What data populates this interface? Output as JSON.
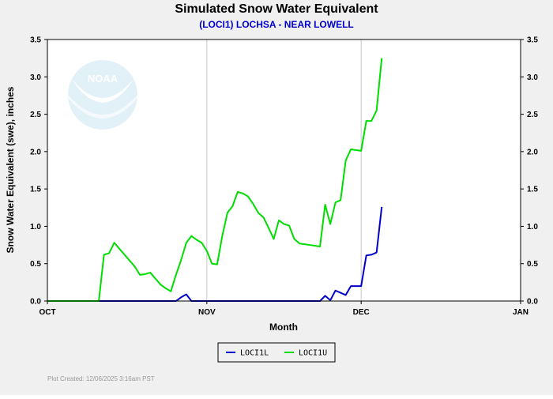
{
  "chart_data": {
    "type": "line",
    "title": "Simulated Snow Water Equivalent",
    "subtitle": "(LOCI1) LOCHSA - NEAR LOWELL",
    "ylabel": "Snow Water Equivalent (swe),  inches",
    "xlabel": "Month",
    "x_axis": {
      "type": "date",
      "range": [
        "2025-10-01",
        "2026-01-01"
      ],
      "ticks": [
        {
          "date": "2025-10-01",
          "label": "OCT"
        },
        {
          "date": "2025-11-01",
          "label": "NOV"
        },
        {
          "date": "2025-12-01",
          "label": "DEC"
        },
        {
          "date": "2026-01-01",
          "label": "JAN"
        }
      ]
    },
    "ylim": [
      0,
      3.5
    ],
    "yticks": [
      "0.0",
      "0.5",
      "1.0",
      "1.5",
      "2.0",
      "2.5",
      "3.0",
      "3.5"
    ],
    "grid": {
      "vertical": true,
      "horizontal": false
    },
    "legend": "bottom",
    "watermark": "NOAA",
    "series": [
      {
        "name": "LOCI1L",
        "color": "#0000cc",
        "points": [
          [
            "2025-10-01",
            0.0
          ],
          [
            "2025-10-26",
            0.0
          ],
          [
            "2025-10-27",
            0.05
          ],
          [
            "2025-10-28",
            0.09
          ],
          [
            "2025-10-29",
            0.0
          ],
          [
            "2025-11-23",
            0.0
          ],
          [
            "2025-11-24",
            0.07
          ],
          [
            "2025-11-25",
            0.01
          ],
          [
            "2025-11-26",
            0.14
          ],
          [
            "2025-11-27",
            0.11
          ],
          [
            "2025-11-28",
            0.08
          ],
          [
            "2025-11-29",
            0.2
          ],
          [
            "2025-11-30",
            0.2
          ],
          [
            "2025-12-01",
            0.2
          ],
          [
            "2025-12-02",
            0.61
          ],
          [
            "2025-12-03",
            0.62
          ],
          [
            "2025-12-04",
            0.65
          ],
          [
            "2025-12-05",
            1.26
          ]
        ]
      },
      {
        "name": "LOCI1U",
        "color": "#00dd00",
        "points": [
          [
            "2025-10-01",
            0.0
          ],
          [
            "2025-10-11",
            0.0
          ],
          [
            "2025-10-12",
            0.62
          ],
          [
            "2025-10-13",
            0.64
          ],
          [
            "2025-10-14",
            0.78
          ],
          [
            "2025-10-15",
            0.7
          ],
          [
            "2025-10-16",
            0.62
          ],
          [
            "2025-10-17",
            0.54
          ],
          [
            "2025-10-18",
            0.46
          ],
          [
            "2025-10-19",
            0.35
          ],
          [
            "2025-10-20",
            0.36
          ],
          [
            "2025-10-21",
            0.38
          ],
          [
            "2025-10-22",
            0.3
          ],
          [
            "2025-10-23",
            0.22
          ],
          [
            "2025-10-24",
            0.17
          ],
          [
            "2025-10-25",
            0.13
          ],
          [
            "2025-10-26",
            0.35
          ],
          [
            "2025-10-27",
            0.55
          ],
          [
            "2025-10-28",
            0.78
          ],
          [
            "2025-10-29",
            0.87
          ],
          [
            "2025-10-30",
            0.82
          ],
          [
            "2025-10-31",
            0.78
          ],
          [
            "2025-11-01",
            0.67
          ],
          [
            "2025-11-02",
            0.5
          ],
          [
            "2025-11-03",
            0.49
          ],
          [
            "2025-11-04",
            0.87
          ],
          [
            "2025-11-05",
            1.18
          ],
          [
            "2025-11-06",
            1.27
          ],
          [
            "2025-11-07",
            1.46
          ],
          [
            "2025-11-08",
            1.44
          ],
          [
            "2025-11-09",
            1.4
          ],
          [
            "2025-11-10",
            1.3
          ],
          [
            "2025-11-11",
            1.18
          ],
          [
            "2025-11-12",
            1.12
          ],
          [
            "2025-11-13",
            0.98
          ],
          [
            "2025-11-14",
            0.83
          ],
          [
            "2025-11-15",
            1.08
          ],
          [
            "2025-11-16",
            1.03
          ],
          [
            "2025-11-17",
            1.01
          ],
          [
            "2025-11-18",
            0.83
          ],
          [
            "2025-11-19",
            0.77
          ],
          [
            "2025-11-20",
            0.76
          ],
          [
            "2025-11-21",
            0.75
          ],
          [
            "2025-11-22",
            0.74
          ],
          [
            "2025-11-23",
            0.73
          ],
          [
            "2025-11-24",
            1.29
          ],
          [
            "2025-11-25",
            1.03
          ],
          [
            "2025-11-26",
            1.32
          ],
          [
            "2025-11-27",
            1.35
          ],
          [
            "2025-11-28",
            1.88
          ],
          [
            "2025-11-29",
            2.03
          ],
          [
            "2025-11-30",
            2.02
          ],
          [
            "2025-12-01",
            2.01
          ],
          [
            "2025-12-02",
            2.41
          ],
          [
            "2025-12-03",
            2.41
          ],
          [
            "2025-12-04",
            2.55
          ],
          [
            "2025-12-05",
            3.25
          ]
        ]
      }
    ]
  },
  "footer": {
    "created_text": "Plot Created: 12/06/2025 3:16am PST"
  },
  "colors": {
    "background": "#f0f0f0",
    "plot_background": "#ffffff",
    "grid": "#c8c8c8",
    "subtitle": "#0000cc"
  }
}
